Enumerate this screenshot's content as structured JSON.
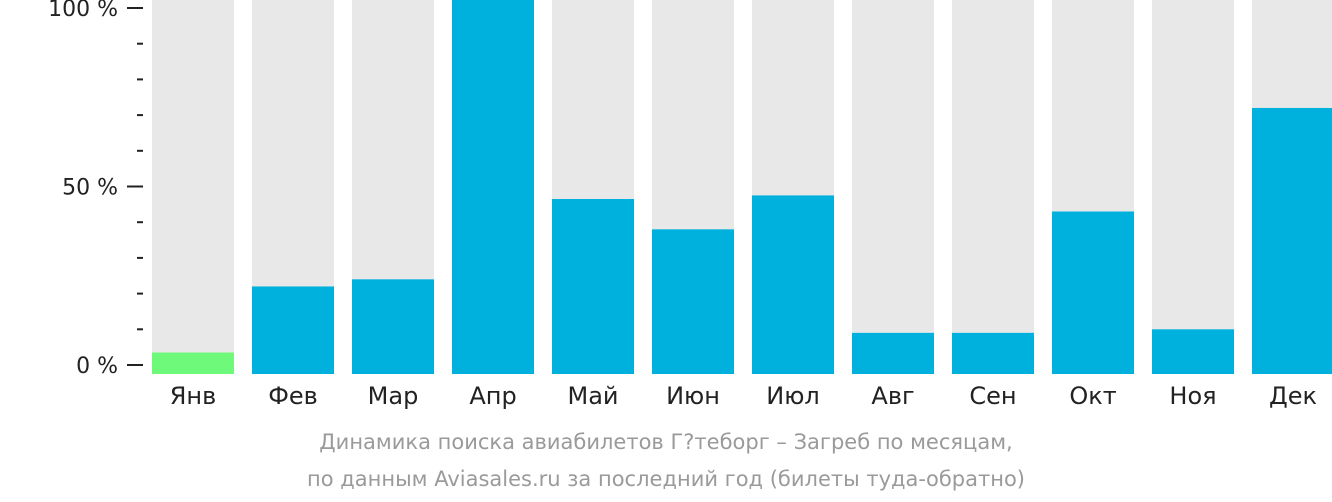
{
  "chart_data": {
    "type": "bar",
    "categories": [
      "Янв",
      "Фев",
      "Мар",
      "Апр",
      "Май",
      "Июн",
      "Июл",
      "Авг",
      "Сен",
      "Окт",
      "Ноя",
      "Дек"
    ],
    "values": [
      3.5,
      22,
      24,
      100,
      46.5,
      38,
      47.5,
      9,
      9,
      43,
      10,
      72
    ],
    "ylim": [
      0,
      100
    ],
    "y_ticks": [
      {
        "value": 0,
        "label": "0 %"
      },
      {
        "value": 50,
        "label": "50 %"
      },
      {
        "value": 100,
        "label": "100 %"
      }
    ],
    "minor_tick_step": 10,
    "highlight_index": 0,
    "colors": {
      "bar": "#00b0dd",
      "highlight": "#6ef97a",
      "track": "#e8e8e9",
      "axis": "#222222"
    },
    "grid": false,
    "legend": "none"
  },
  "caption": {
    "line1": "Динамика поиска авиабилетов Г?теборг – Загреб по месяцам,",
    "line2": "по данным Aviasales.ru за последний год (билеты туда-обратно)"
  }
}
